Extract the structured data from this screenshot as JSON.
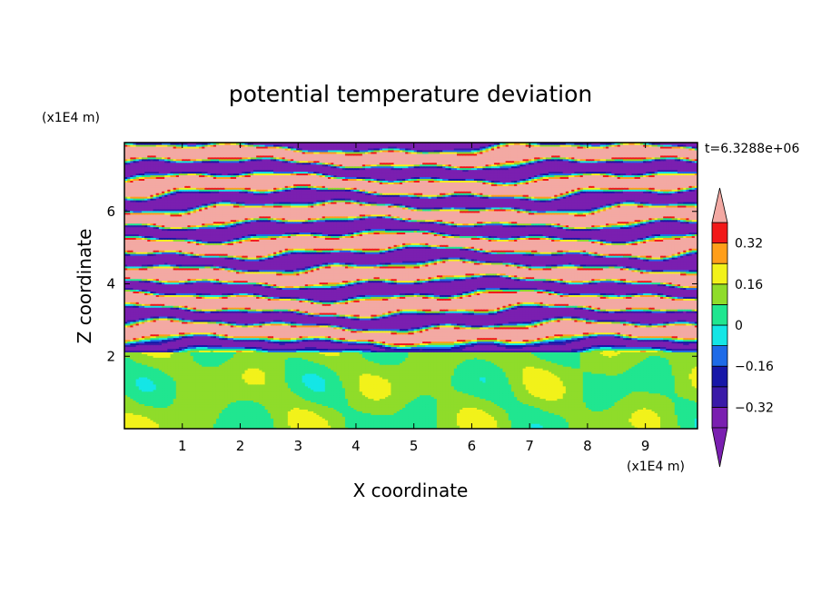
{
  "chart_data": {
    "type": "heatmap",
    "title": "potential temperature deviation",
    "xlabel": "X coordinate",
    "ylabel": "Z coordinate",
    "x_unit": "(x1E4 m)",
    "y_unit": "(x1E4 m)",
    "time_label": "t=6.3288e+06",
    "xlim": [
      0,
      9.9
    ],
    "ylim": [
      0,
      7.9
    ],
    "x_ticks": [
      1,
      2,
      3,
      4,
      5,
      6,
      7,
      8,
      9
    ],
    "y_ticks": [
      2,
      4,
      6
    ],
    "colorbar": {
      "levels": [
        -0.4,
        -0.32,
        -0.24,
        -0.16,
        -0.08,
        0,
        0.08,
        0.16,
        0.24,
        0.32,
        0.4
      ],
      "tick_values": [
        0.32,
        0.16,
        0,
        -0.16,
        -0.32
      ],
      "tick_labels": [
        "0.32",
        "0.16",
        "0",
        "−0.16",
        "−0.32"
      ],
      "colors": [
        "#7a1fb0",
        "#3a1aa8",
        "#1717a8",
        "#1e6be8",
        "#14e6e6",
        "#20e690",
        "#8fdc2a",
        "#f2f21a",
        "#ff9e1a",
        "#f21818",
        "#f3a9a3"
      ],
      "under_color": "#7a1fb0",
      "over_color": "#f3a9a3",
      "extend": "both"
    }
  }
}
